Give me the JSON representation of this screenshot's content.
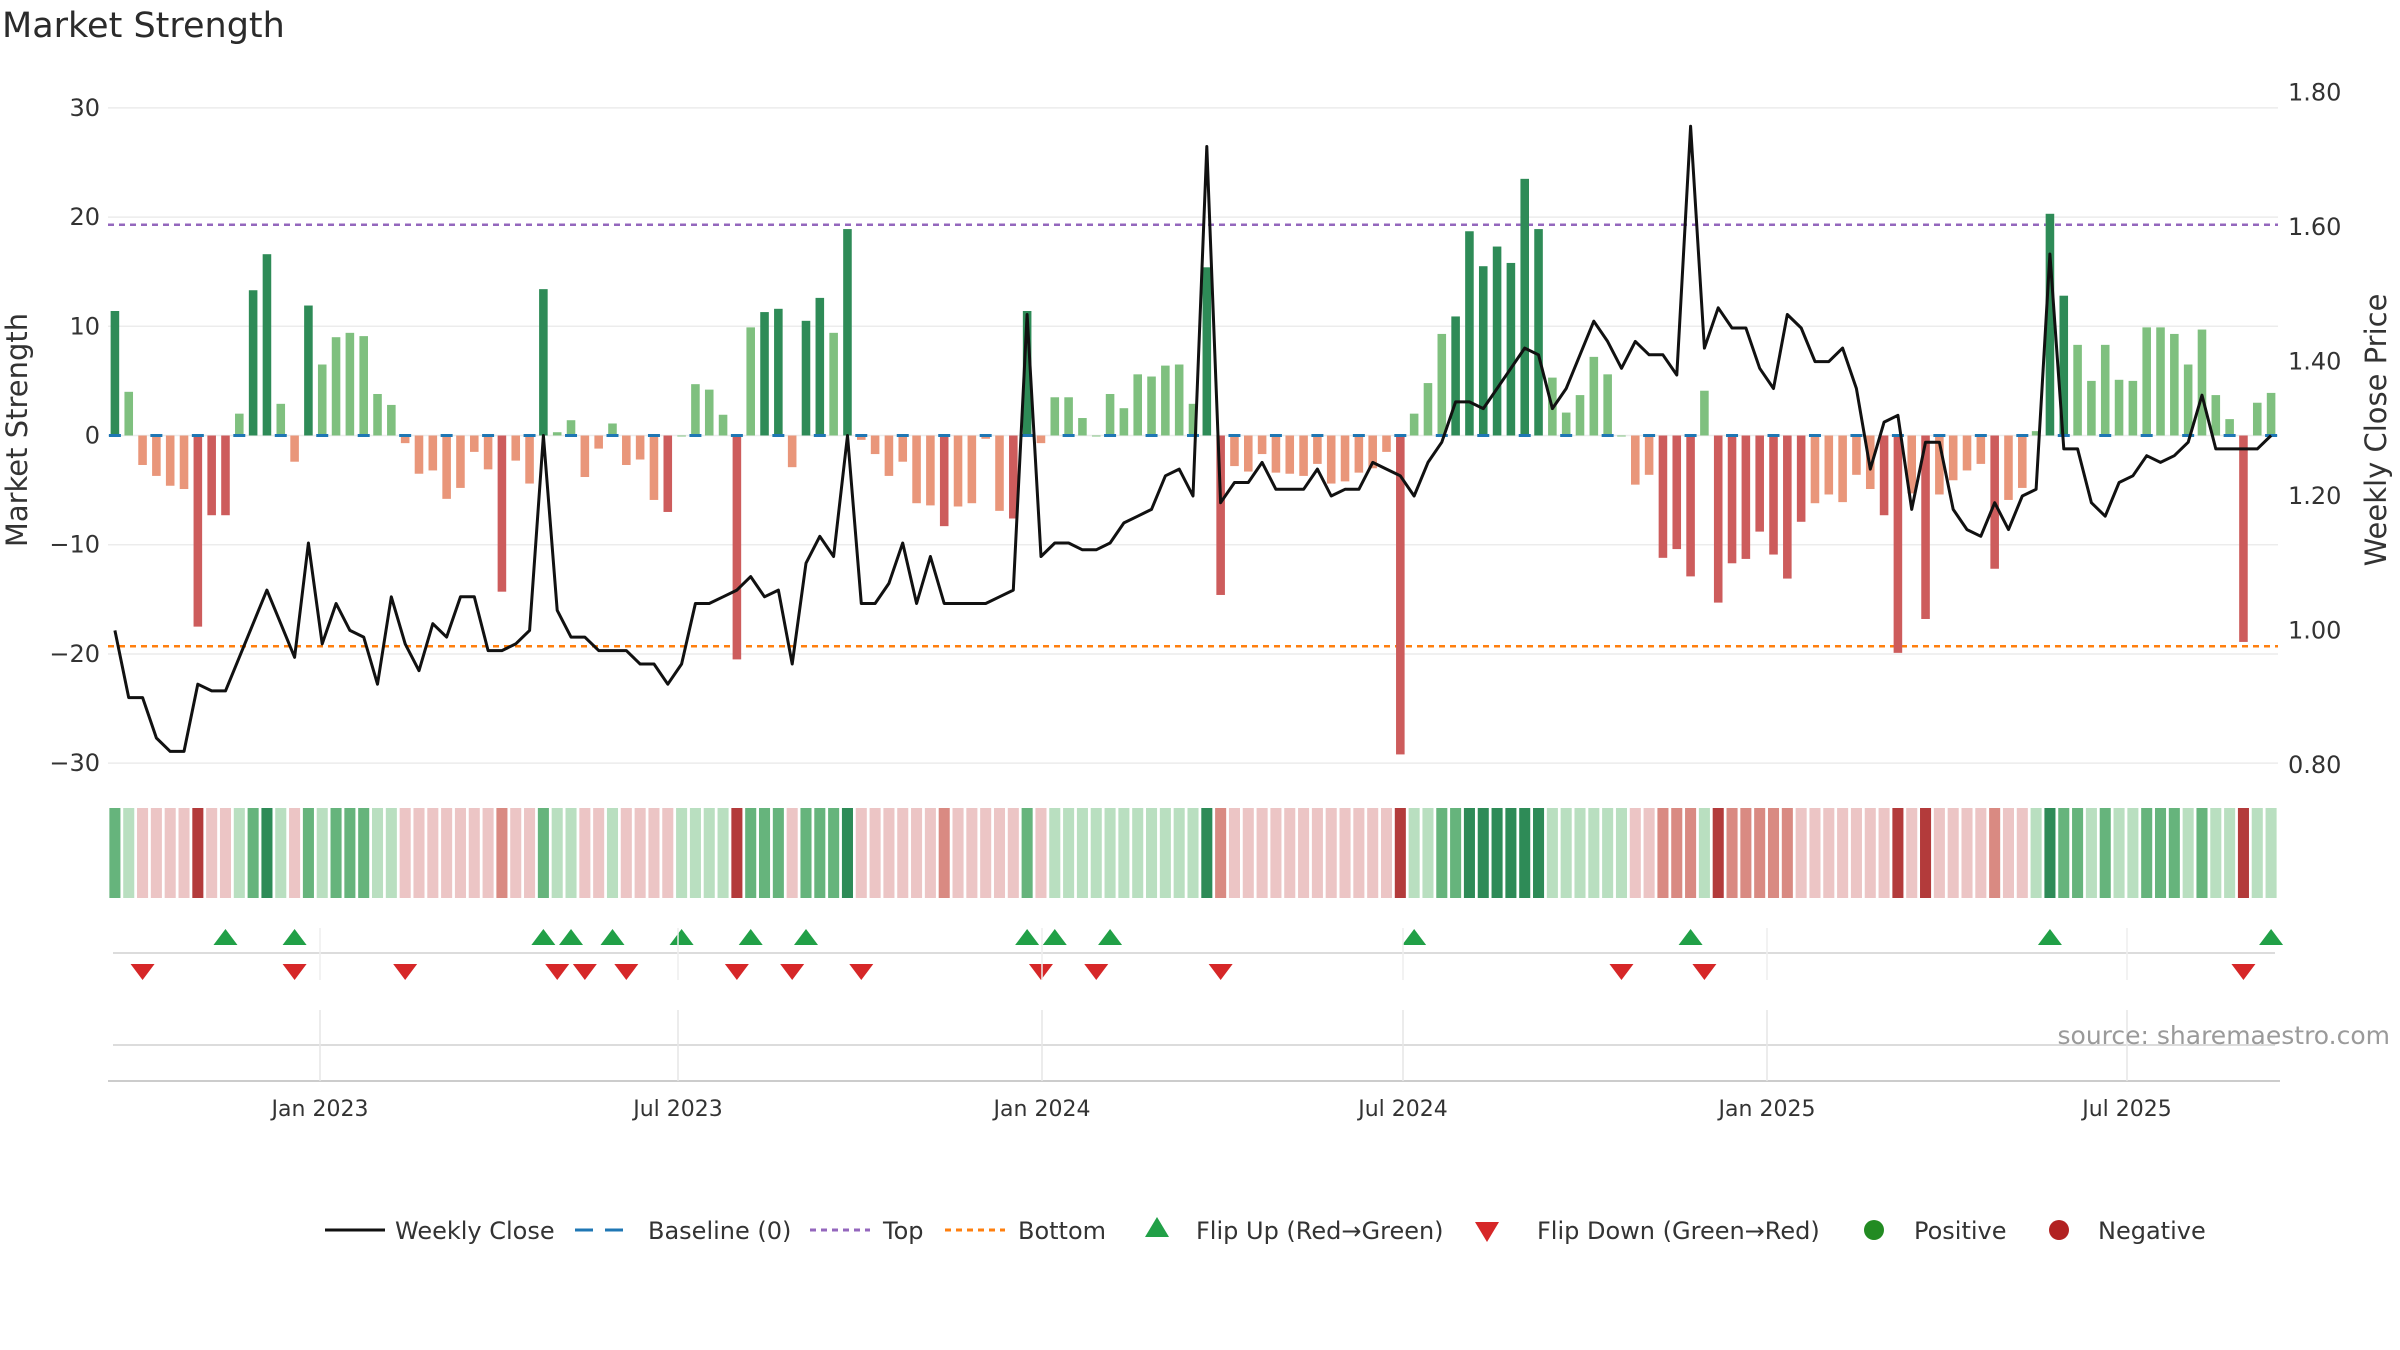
{
  "title": "Market Strength",
  "colors": {
    "strong_green": "#2e8b57",
    "light_green": "#7fc07f",
    "strong_red": "#cd5c5c",
    "light_red": "#e9967a",
    "baseline": "#1f77b4",
    "top": "#9467bd",
    "bottom": "#ff7f0e",
    "close": "#111111",
    "flip_up": "#21a047",
    "flip_down": "#d62728",
    "positive": "#228b22",
    "negative": "#b22222"
  },
  "chart_data": {
    "type": "bar",
    "title": "Market Strength",
    "ylabel": "Market Strength",
    "y2label": "Weekly Close Price",
    "ylim": [
      -32,
      32
    ],
    "y2lim": [
      0.77,
      1.81
    ],
    "yticks": [
      "30",
      "20",
      "10",
      "0",
      "−10",
      "−20",
      "−30"
    ],
    "y2ticks": [
      "1.80",
      "1.60",
      "1.40",
      "1.20",
      "1.00",
      "0.80"
    ],
    "xticks": [
      "Jan 2023",
      "Jul 2023",
      "Jan 2024",
      "Jul 2024",
      "Jan 2025",
      "Jul 2025"
    ],
    "top_line": 19.3,
    "bottom_line": -19.3,
    "grid": true,
    "legend_position": "bottom",
    "source": "source: sharemaestro.com",
    "series": [
      {
        "name": "Market Strength",
        "values": [
          11.4,
          4.0,
          -2.7,
          -3.7,
          -4.6,
          -4.9,
          -17.5,
          -7.3,
          -7.3,
          2.0,
          13.3,
          16.6,
          2.9,
          -2.4,
          11.9,
          6.5,
          9.0,
          9.4,
          9.1,
          3.8,
          2.8,
          -0.7,
          -3.5,
          -3.2,
          -5.8,
          -4.8,
          -1.5,
          -3.1,
          -14.3,
          -2.3,
          -4.4,
          13.4,
          0.3,
          1.4,
          -3.8,
          -1.2,
          1.1,
          -2.7,
          -2.2,
          -5.9,
          -7.0,
          0.0,
          4.7,
          4.2,
          1.9,
          -20.5,
          9.9,
          11.3,
          11.6,
          -2.9,
          10.5,
          12.6,
          9.4,
          18.9,
          -0.4,
          -1.7,
          -3.7,
          -2.4,
          -6.2,
          -6.4,
          -8.3,
          -6.5,
          -6.2,
          -0.3,
          -6.9,
          -7.6,
          11.4,
          -0.7,
          3.5,
          3.5,
          1.6,
          0.0,
          3.8,
          2.5,
          5.6,
          5.4,
          6.4,
          6.5,
          2.9,
          15.4,
          -14.6,
          -2.8,
          -3.3,
          -1.7,
          -3.4,
          -3.5,
          -3.7,
          -2.6,
          -4.4,
          -4.2,
          -3.4,
          -3.0,
          -1.5,
          -29.2,
          2.0,
          4.8,
          9.3,
          10.9,
          18.7,
          15.5,
          17.3,
          15.8,
          23.5,
          18.9,
          5.3,
          2.1,
          3.7,
          7.2,
          5.6,
          0.0,
          -4.5,
          -3.6,
          -11.2,
          -10.4,
          -12.9,
          4.1,
          -15.3,
          -11.7,
          -11.3,
          -8.8,
          -10.9,
          -13.1,
          -7.9,
          -6.2,
          -5.4,
          -6.1,
          -3.6,
          -4.9,
          -7.3,
          -19.9,
          -5.3,
          -16.8,
          -5.4,
          -4.1,
          -3.2,
          -2.6,
          -12.2,
          -5.9,
          -4.8,
          0.4,
          20.3,
          12.8,
          8.3,
          5.0,
          8.3,
          5.1,
          5.0,
          9.9,
          9.9,
          9.3,
          6.5,
          9.7,
          3.7,
          1.5,
          -18.9,
          3.0,
          3.9
        ]
      },
      {
        "name": "Weekly Close",
        "values": [
          1.0,
          0.9,
          0.9,
          0.84,
          0.82,
          0.82,
          0.92,
          0.91,
          0.91,
          0.96,
          1.01,
          1.06,
          1.01,
          0.96,
          1.13,
          0.98,
          1.04,
          1.0,
          0.99,
          0.92,
          1.05,
          0.98,
          0.94,
          1.01,
          0.99,
          1.05,
          1.05,
          0.97,
          0.97,
          0.98,
          1.0,
          1.29,
          1.03,
          0.99,
          0.99,
          0.97,
          0.97,
          0.97,
          0.95,
          0.95,
          0.92,
          0.95,
          1.04,
          1.04,
          1.05,
          1.06,
          1.08,
          1.05,
          1.06,
          0.95,
          1.1,
          1.14,
          1.11,
          1.29,
          1.04,
          1.04,
          1.07,
          1.13,
          1.04,
          1.11,
          1.04,
          1.04,
          1.04,
          1.04,
          1.05,
          1.06,
          1.47,
          1.11,
          1.13,
          1.13,
          1.12,
          1.12,
          1.13,
          1.16,
          1.17,
          1.18,
          1.23,
          1.24,
          1.2,
          1.72,
          1.19,
          1.22,
          1.22,
          1.25,
          1.21,
          1.21,
          1.21,
          1.24,
          1.2,
          1.21,
          1.21,
          1.25,
          1.24,
          1.23,
          1.2,
          1.25,
          1.28,
          1.34,
          1.34,
          1.33,
          1.36,
          1.39,
          1.42,
          1.41,
          1.33,
          1.36,
          1.41,
          1.46,
          1.43,
          1.39,
          1.43,
          1.41,
          1.41,
          1.38,
          1.75,
          1.42,
          1.48,
          1.45,
          1.45,
          1.39,
          1.36,
          1.47,
          1.45,
          1.4,
          1.4,
          1.42,
          1.36,
          1.24,
          1.31,
          1.32,
          1.18,
          1.28,
          1.28,
          1.18,
          1.15,
          1.14,
          1.19,
          1.15,
          1.2,
          1.21,
          1.56,
          1.27,
          1.27,
          1.19,
          1.17,
          1.22,
          1.23,
          1.26,
          1.25,
          1.26,
          1.28,
          1.35,
          1.27,
          1.27,
          1.27,
          1.27,
          1.29
        ]
      }
    ],
    "flip_up": [
      8,
      13,
      31,
      33,
      36,
      41,
      46,
      50,
      66,
      68,
      72,
      94,
      114,
      140,
      156
    ],
    "flip_down": [
      2,
      13,
      21,
      32,
      34,
      37,
      45,
      49,
      54,
      67,
      71,
      80,
      109,
      115,
      154
    ]
  },
  "legend": {
    "items": [
      "Weekly Close",
      "Baseline (0)",
      "Top",
      "Bottom",
      "Flip Up (Red→Green)",
      "Flip Down (Green→Red)",
      "Positive",
      "Negative"
    ]
  }
}
